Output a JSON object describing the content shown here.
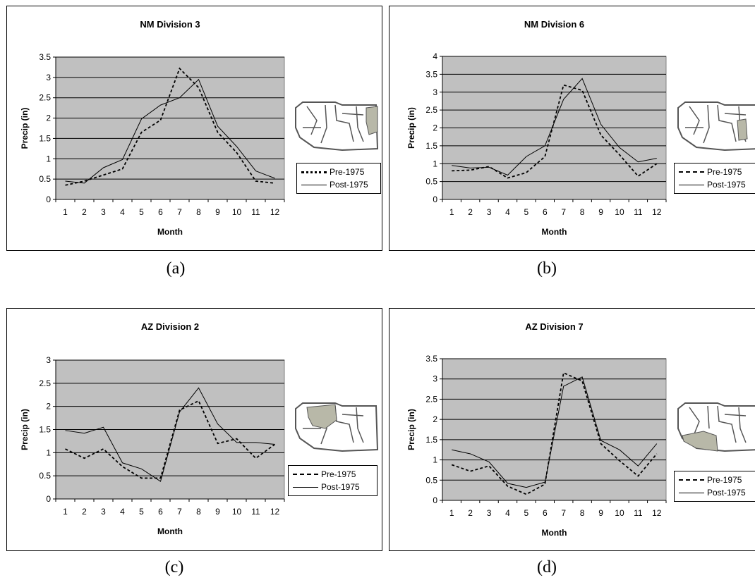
{
  "legend": {
    "pre_label": "Pre-1975",
    "post_label": "Post-1975"
  },
  "captions": [
    "(a)",
    "(b)",
    "(c)",
    "(d)"
  ],
  "chart_data": [
    {
      "type": "line",
      "title": "NM Division 3",
      "xlabel": "Month",
      "ylabel": "Precip (in)",
      "ylim": [
        0,
        3.5
      ],
      "ytick_labels": [
        "0",
        "0.5",
        "1",
        "1.5",
        "2",
        "2.5",
        "3",
        "3.5"
      ],
      "x": [
        1,
        2,
        3,
        4,
        5,
        6,
        7,
        8,
        9,
        10,
        11,
        12
      ],
      "series": [
        {
          "name": "Pre-1975",
          "values": [
            0.35,
            0.45,
            0.6,
            0.75,
            1.65,
            1.95,
            3.22,
            2.75,
            1.65,
            1.15,
            0.45,
            0.4
          ]
        },
        {
          "name": "Post-1975",
          "values": [
            0.45,
            0.4,
            0.78,
            0.98,
            1.98,
            2.32,
            2.5,
            2.95,
            1.8,
            1.3,
            0.7,
            0.52
          ]
        }
      ],
      "grid": true,
      "legend_position": "right"
    },
    {
      "type": "line",
      "title": "NM Division 6",
      "xlabel": "Month",
      "ylabel": "Precip (in)",
      "ylim": [
        0,
        4
      ],
      "ytick_labels": [
        "0",
        "0.5",
        "1",
        "1.5",
        "2",
        "2.5",
        "3",
        "3.5",
        "4"
      ],
      "x": [
        1,
        2,
        3,
        4,
        5,
        6,
        7,
        8,
        9,
        10,
        11,
        12
      ],
      "series": [
        {
          "name": "Pre-1975",
          "values": [
            0.8,
            0.82,
            0.92,
            0.6,
            0.75,
            1.2,
            3.2,
            3.05,
            1.8,
            1.25,
            0.65,
            1.0
          ]
        },
        {
          "name": "Post-1975",
          "values": [
            0.95,
            0.88,
            0.9,
            0.68,
            1.2,
            1.5,
            2.8,
            3.38,
            2.1,
            1.45,
            1.05,
            1.15
          ]
        }
      ],
      "grid": true,
      "legend_position": "right"
    },
    {
      "type": "line",
      "title": "AZ Division 2",
      "xlabel": "Month",
      "ylabel": "Precip (in)",
      "ylim": [
        0,
        3
      ],
      "ytick_labels": [
        "0",
        "0.5",
        "1",
        "1.5",
        "2",
        "2.5",
        "3"
      ],
      "x": [
        1,
        2,
        3,
        4,
        5,
        6,
        7,
        8,
        9,
        10,
        11,
        12
      ],
      "series": [
        {
          "name": "Pre-1975",
          "values": [
            1.08,
            0.88,
            1.08,
            0.7,
            0.45,
            0.45,
            1.92,
            2.12,
            1.2,
            1.3,
            0.88,
            1.18
          ]
        },
        {
          "name": "Post-1975",
          "values": [
            1.48,
            1.42,
            1.55,
            0.78,
            0.65,
            0.38,
            1.88,
            2.4,
            1.62,
            1.22,
            1.22,
            1.18
          ]
        }
      ],
      "grid": true,
      "legend_position": "right"
    },
    {
      "type": "line",
      "title": "AZ Division 7",
      "xlabel": "Month",
      "ylabel": "Precip (in)",
      "ylim": [
        0,
        3.5
      ],
      "ytick_labels": [
        "0",
        "0.5",
        "1",
        "1.5",
        "2",
        "2.5",
        "3",
        "3.5"
      ],
      "x": [
        1,
        2,
        3,
        4,
        5,
        6,
        7,
        8,
        9,
        10,
        11,
        12
      ],
      "series": [
        {
          "name": "Pre-1975",
          "values": [
            0.88,
            0.72,
            0.85,
            0.35,
            0.15,
            0.4,
            3.15,
            2.95,
            1.4,
            0.98,
            0.6,
            1.15
          ]
        },
        {
          "name": "Post-1975",
          "values": [
            1.25,
            1.15,
            0.95,
            0.42,
            0.32,
            0.45,
            2.82,
            3.05,
            1.48,
            1.25,
            0.85,
            1.4
          ]
        }
      ],
      "grid": true,
      "legend_position": "right"
    }
  ]
}
